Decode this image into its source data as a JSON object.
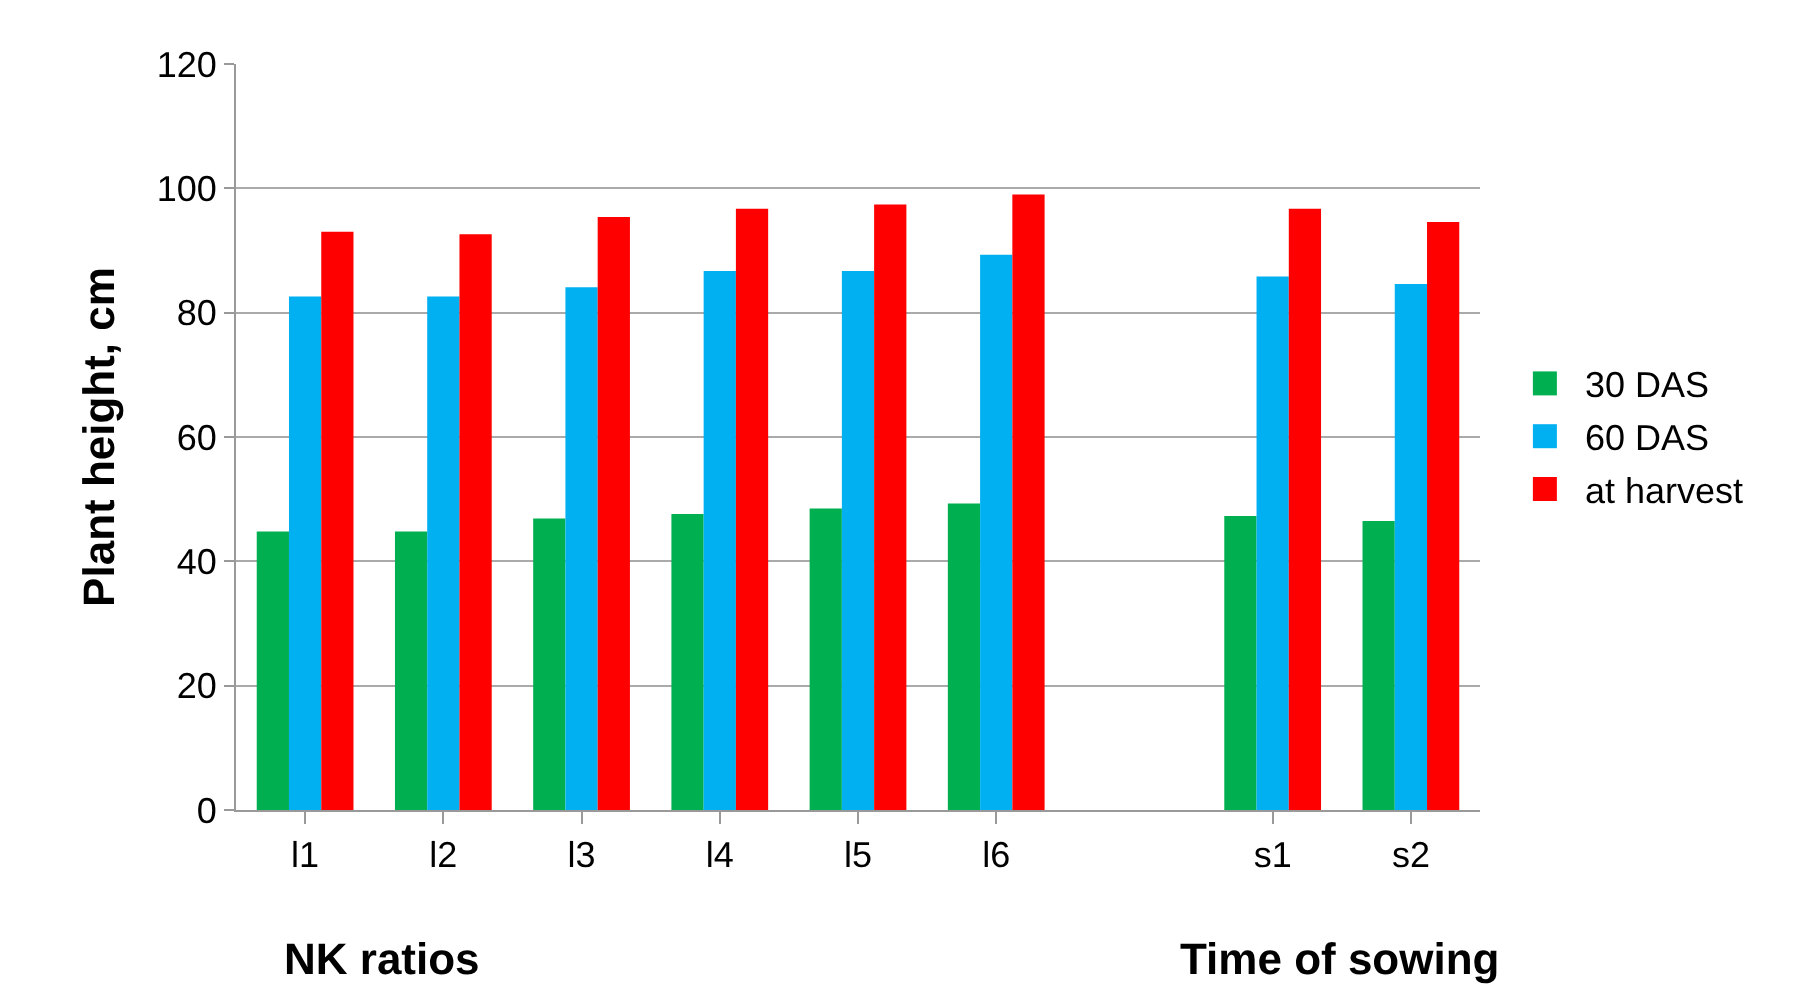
{
  "chart_data": {
    "type": "bar",
    "ylabel": "Plant height, cm",
    "categories": [
      "l1",
      "l2",
      "l3",
      "l4",
      "l5",
      "l6",
      null,
      "s1",
      "s2"
    ],
    "series": [
      {
        "name": "30 DAS",
        "color": "#00b050",
        "values": [
          44.8,
          44.8,
          46.9,
          47.6,
          48.5,
          49.3,
          null,
          47.3,
          46.5
        ]
      },
      {
        "name": "60 DAS",
        "color": "#00b0f0",
        "values": [
          82.6,
          82.6,
          84.1,
          86.7,
          86.7,
          89.3,
          null,
          85.8,
          84.6
        ]
      },
      {
        "name": "at harvest",
        "color": "#ff0000",
        "values": [
          93.0,
          92.6,
          95.4,
          96.7,
          97.4,
          99.0,
          null,
          96.7,
          94.6
        ]
      }
    ],
    "ylim": [
      0,
      120
    ],
    "yticks": [
      0,
      20,
      40,
      60,
      80,
      100,
      120
    ],
    "grid": "y",
    "legend": "right",
    "annotations": [
      "NK ratios",
      "Time of sowing"
    ]
  }
}
